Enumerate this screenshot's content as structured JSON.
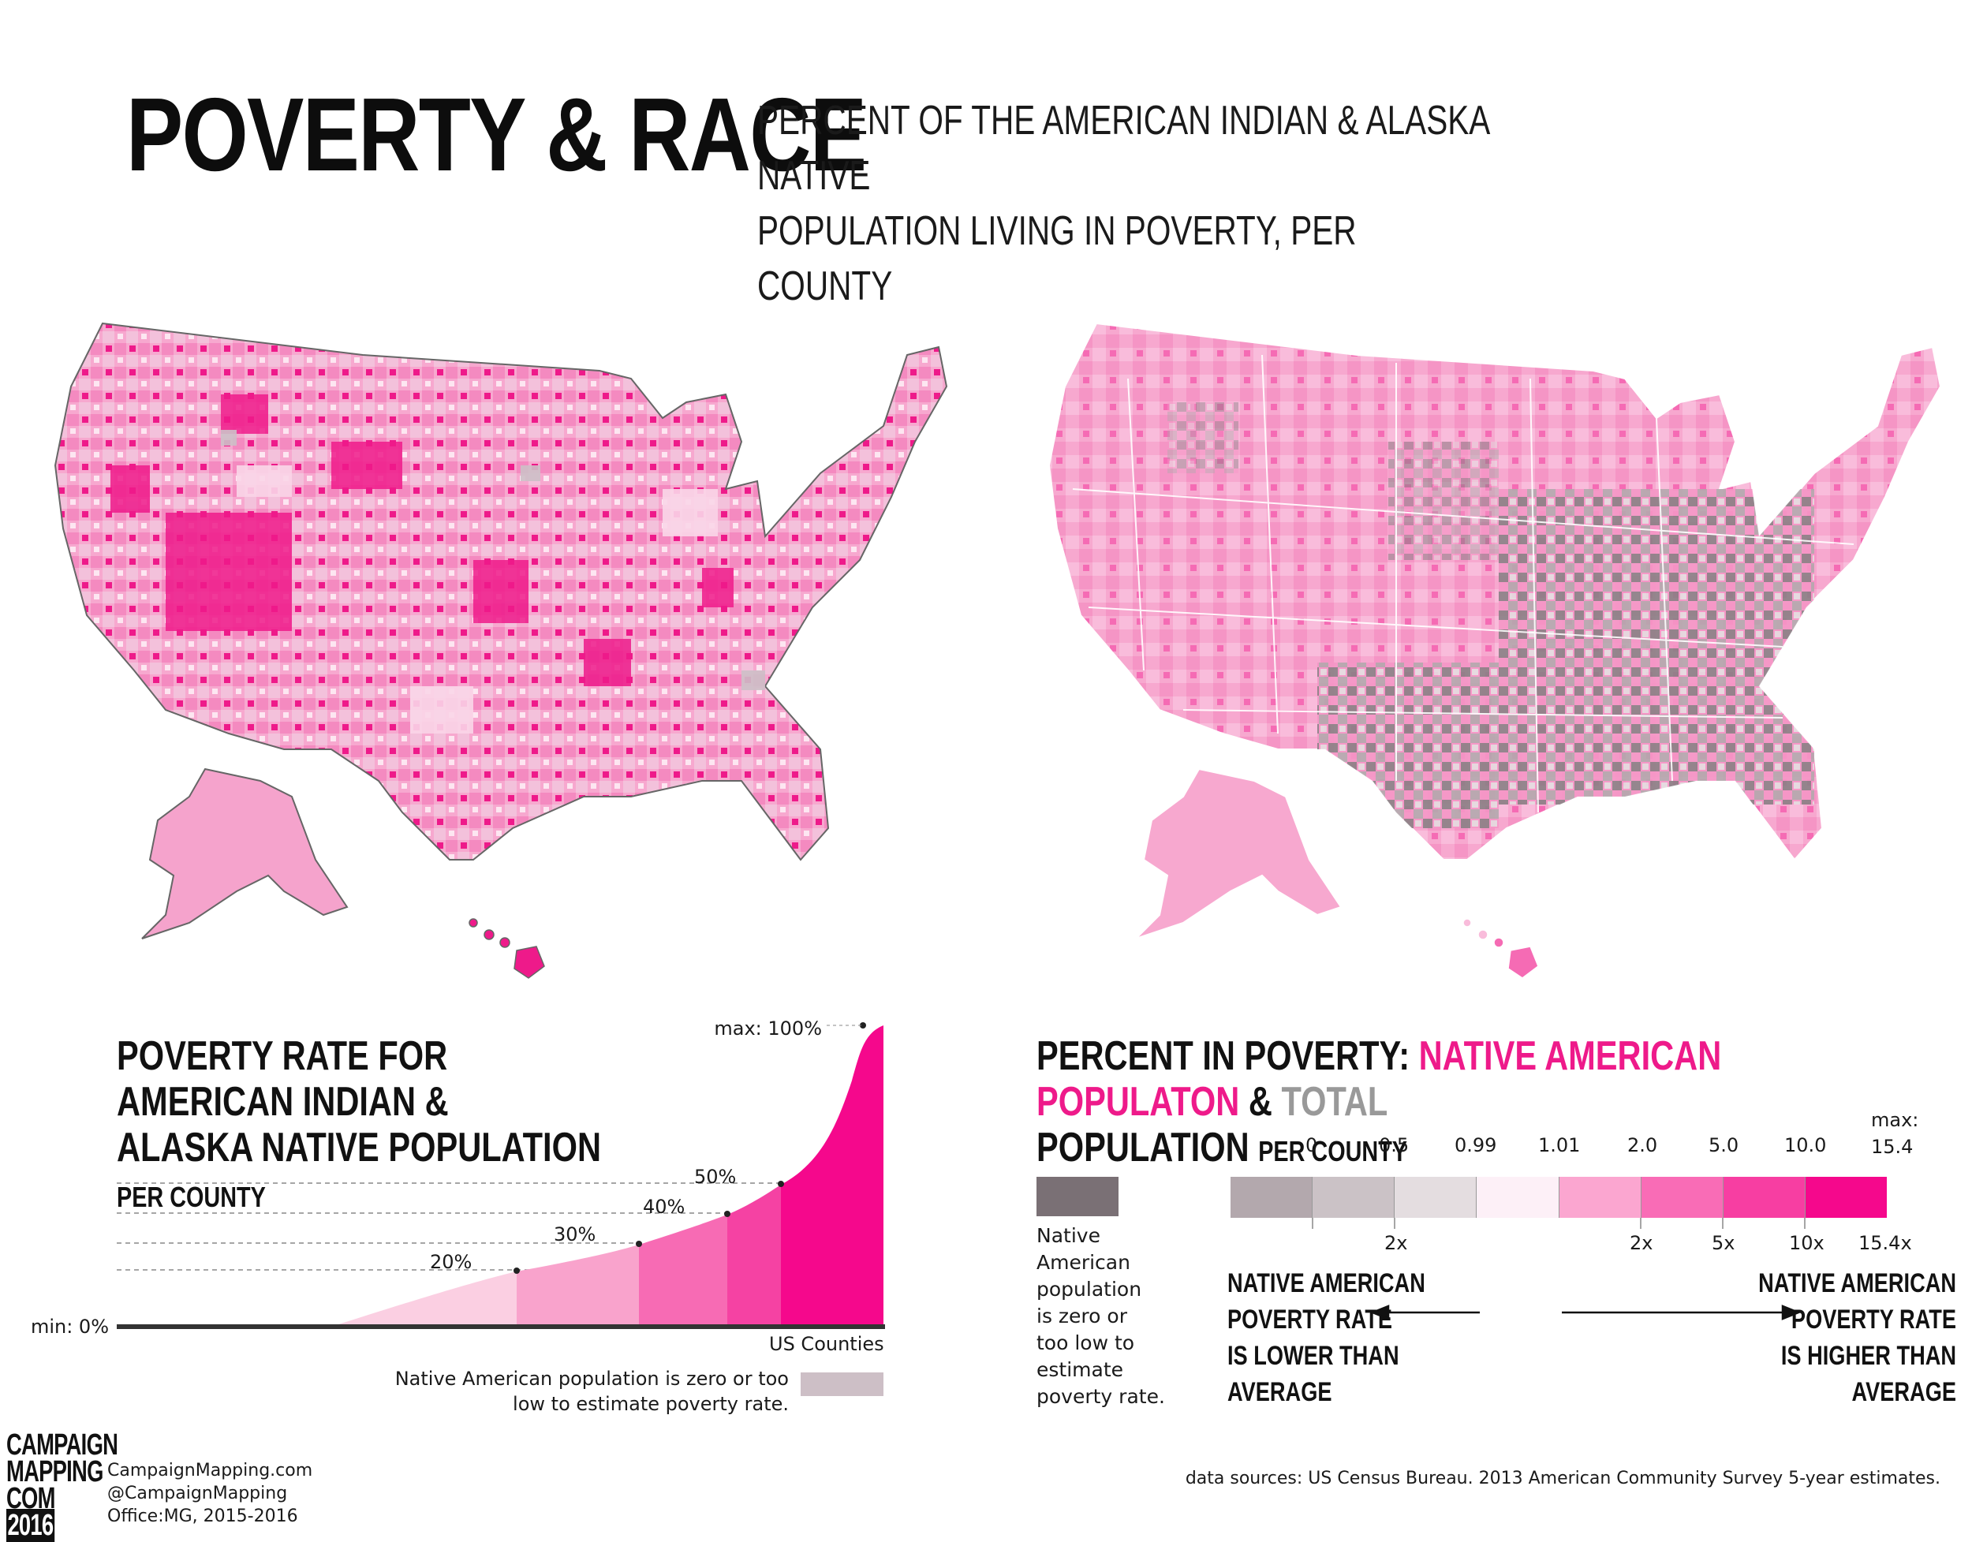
{
  "header": {
    "title": "POVERTY & RACE",
    "subtitle_line1": "PERCENT OF THE AMERICAN INDIAN & ALASKA NATIVE",
    "subtitle_line2": "POPULATION LIVING IN POVERTY, PER COUNTY"
  },
  "maps": {
    "left": {
      "description_colors": {
        "base": "#f7a8cf",
        "dark": "#ee1a8a",
        "none": "#cdbfc6"
      }
    },
    "right": {
      "description_colors": {
        "base": "#f7a8cf",
        "gray": "#8a8085",
        "light": "#fbe3ef"
      }
    }
  },
  "left_legend": {
    "heading_line1": "POVERTY RATE FOR AMERICAN INDIAN &",
    "heading_line2": "ALASKA NATIVE POPULATION",
    "heading_small": "PER COUNTY",
    "max_label": "max: 100%",
    "min_label": "min: 0%",
    "x_label": "US Counties",
    "thresholds": [
      "20%",
      "30%",
      "40%",
      "50%"
    ],
    "no_data_text_line1": "Native American population is zero or too",
    "no_data_text_line2": "low to estimate poverty rate."
  },
  "right_legend": {
    "heading_prefix": "PERCENT IN POVERTY: ",
    "heading_pink": "NATIVE AMERICAN POPULATON",
    "heading_amp": " & ",
    "heading_gray": "TOTAL",
    "heading_line2": "POPULATION",
    "heading_small": "PER COUNTY",
    "max_label": "max:",
    "no_data_lines": [
      "Native",
      "American",
      "population",
      "is zero or",
      "too low to",
      "estimate",
      "poverty rate."
    ],
    "top_ticks": [
      "0",
      "0.5",
      "0.99",
      "1.01",
      "2.0",
      "5.0",
      "10.0",
      "15.4"
    ],
    "bottom_ticks": [
      "2x",
      "2x",
      "5x",
      "10x",
      "15.4x"
    ],
    "lower_caption": [
      "NATIVE AMERICAN",
      "POVERTY RATE",
      "IS LOWER THAN",
      "AVERAGE"
    ],
    "higher_caption": [
      "NATIVE AMERICAN",
      "POVERTY RATE",
      "IS HIGHER THAN",
      "AVERAGE"
    ],
    "swatches": [
      "#b3a8ad",
      "#cbc2c6",
      "#e4dde0",
      "#fdf0f7",
      "#fba6d0",
      "#f96cb6",
      "#f73ea2",
      "#f5088c"
    ]
  },
  "footer": {
    "logo_lines": [
      "CAMPAIGN",
      "MAPPING",
      "COM",
      "2016"
    ],
    "credits": [
      "CampaignMapping.com",
      "@CampaignMapping",
      "Office:MG, 2015-2016"
    ],
    "source": "data sources: US Census Bureau. 2013 American Community Survey 5-year estimates."
  }
}
